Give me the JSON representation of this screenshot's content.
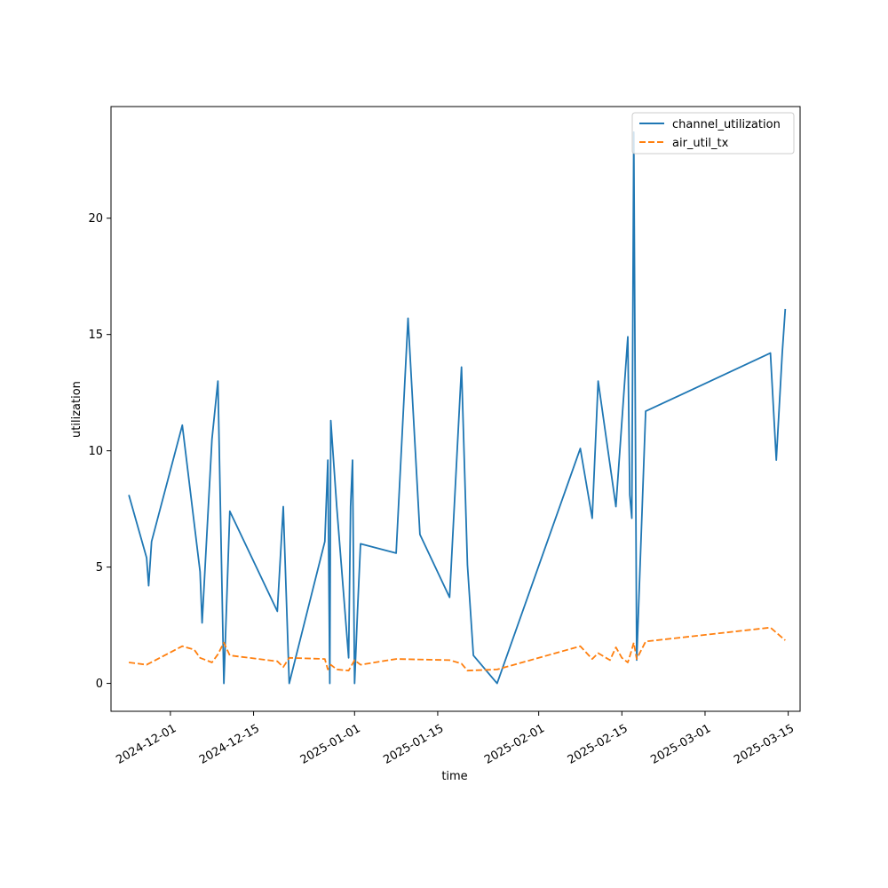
{
  "chart_data": {
    "type": "line",
    "title": "",
    "xlabel": "time",
    "ylabel": "utilization",
    "x_type": "date",
    "xlim": [
      "2024-11-21",
      "2025-03-17"
    ],
    "ylim": [
      -1.2,
      24.8
    ],
    "x_ticks": [
      "2024-12-01",
      "2024-12-15",
      "2025-01-01",
      "2025-01-15",
      "2025-02-01",
      "2025-02-15",
      "2025-03-01",
      "2025-03-15"
    ],
    "x_tick_labels": [
      "2024-12-01",
      "2024-12-15",
      "2025-01-01",
      "2025-01-15",
      "2025-02-01",
      "2025-02-15",
      "2025-03-01",
      "2025-03-15"
    ],
    "y_ticks": [
      0,
      5,
      10,
      15,
      20
    ],
    "y_tick_labels": [
      "0",
      "5",
      "10",
      "15",
      "20"
    ],
    "grid": false,
    "legend_position": "top-right",
    "series": [
      {
        "name": "channel_utilization",
        "color": "#1f77b4",
        "style": "solid",
        "points": [
          [
            "2024-11-24",
            8.1
          ],
          [
            "2024-11-27",
            5.4
          ],
          [
            "2024-11-27T08",
            4.2
          ],
          [
            "2024-11-27T20",
            6.1
          ],
          [
            "2024-12-03",
            11.1
          ],
          [
            "2024-12-06",
            4.8
          ],
          [
            "2024-12-06T08",
            2.6
          ],
          [
            "2024-12-08",
            10.5
          ],
          [
            "2024-12-09",
            13.0
          ],
          [
            "2024-12-10",
            0.0
          ],
          [
            "2024-12-11",
            7.4
          ],
          [
            "2024-12-19",
            3.1
          ],
          [
            "2024-12-20",
            7.6
          ],
          [
            "2024-12-21",
            0.0
          ],
          [
            "2024-12-27",
            6.1
          ],
          [
            "2024-12-27T12",
            9.6
          ],
          [
            "2024-12-27T20",
            0.0
          ],
          [
            "2024-12-28",
            11.3
          ],
          [
            "2024-12-29",
            7.6
          ],
          [
            "2024-12-31",
            1.1
          ],
          [
            "2024-12-31T08",
            7.6
          ],
          [
            "2024-12-31T16",
            9.6
          ],
          [
            "2025-01-01",
            0.0
          ],
          [
            "2025-01-01T12",
            3.1
          ],
          [
            "2025-01-02",
            6.0
          ],
          [
            "2025-01-08",
            5.6
          ],
          [
            "2025-01-10",
            15.7
          ],
          [
            "2025-01-12",
            6.4
          ],
          [
            "2025-01-17",
            3.7
          ],
          [
            "2025-01-19",
            13.6
          ],
          [
            "2025-01-20",
            5.1
          ],
          [
            "2025-01-21",
            1.2
          ],
          [
            "2025-01-25",
            0.0
          ],
          [
            "2025-02-08",
            10.1
          ],
          [
            "2025-02-10",
            7.1
          ],
          [
            "2025-02-11",
            13.0
          ],
          [
            "2025-02-14",
            7.6
          ],
          [
            "2025-02-16",
            14.9
          ],
          [
            "2025-02-16T08",
            8.1
          ],
          [
            "2025-02-16T16",
            7.1
          ],
          [
            "2025-02-17",
            23.7
          ],
          [
            "2025-02-17T12",
            1.0
          ],
          [
            "2025-02-19",
            11.7
          ],
          [
            "2025-03-12",
            14.2
          ],
          [
            "2025-03-13",
            9.6
          ],
          [
            "2025-03-14",
            14.2
          ],
          [
            "2025-03-14T12",
            16.1
          ]
        ]
      },
      {
        "name": "air_util_tx",
        "color": "#ff7f0e",
        "style": "dashed",
        "points": [
          [
            "2024-11-24",
            0.9
          ],
          [
            "2024-11-27",
            0.8
          ],
          [
            "2024-12-03",
            1.6
          ],
          [
            "2024-12-05",
            1.45
          ],
          [
            "2024-12-06",
            1.1
          ],
          [
            "2024-12-08",
            0.9
          ],
          [
            "2024-12-09",
            1.25
          ],
          [
            "2024-12-10",
            1.75
          ],
          [
            "2024-12-11",
            1.2
          ],
          [
            "2024-12-19",
            0.95
          ],
          [
            "2024-12-20",
            0.7
          ],
          [
            "2024-12-21",
            1.1
          ],
          [
            "2024-12-27",
            1.05
          ],
          [
            "2024-12-27T12",
            0.6
          ],
          [
            "2024-12-28",
            0.8
          ],
          [
            "2024-12-29",
            0.6
          ],
          [
            "2024-12-31",
            0.55
          ],
          [
            "2025-01-01",
            1.0
          ],
          [
            "2025-01-02",
            0.8
          ],
          [
            "2025-01-08",
            1.05
          ],
          [
            "2025-01-17",
            1.0
          ],
          [
            "2025-01-19",
            0.85
          ],
          [
            "2025-01-20",
            0.55
          ],
          [
            "2025-01-25",
            0.6
          ],
          [
            "2025-02-08",
            1.6
          ],
          [
            "2025-02-10",
            1.05
          ],
          [
            "2025-02-11",
            1.3
          ],
          [
            "2025-02-13",
            1.0
          ],
          [
            "2025-02-14",
            1.55
          ],
          [
            "2025-02-15",
            1.1
          ],
          [
            "2025-02-16",
            0.9
          ],
          [
            "2025-02-16T12",
            1.3
          ],
          [
            "2025-02-17",
            1.75
          ],
          [
            "2025-02-17T12",
            1.05
          ],
          [
            "2025-02-19",
            1.8
          ],
          [
            "2025-03-12",
            2.4
          ],
          [
            "2025-03-14T12",
            1.85
          ]
        ]
      }
    ]
  }
}
